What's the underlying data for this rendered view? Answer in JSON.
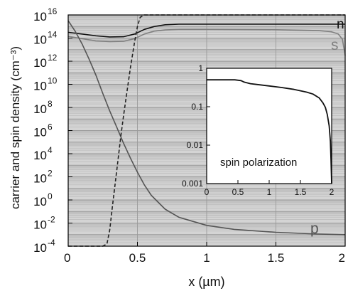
{
  "chart_data": [
    {
      "type": "line",
      "xlabel": "x (µm)",
      "ylabel": "carrier and spin density (cm⁻³)",
      "xlim": [
        0,
        2
      ],
      "ylim_log10": [
        -4,
        16
      ],
      "y_scale": "log",
      "grid": true,
      "plot_background": "#d4d4d4",
      "x_ticks": [
        {
          "v": 0,
          "label": "0"
        },
        {
          "v": 0.5,
          "label": "0.5"
        },
        {
          "v": 1,
          "label": "1"
        },
        {
          "v": 1.5,
          "label": "1.5"
        },
        {
          "v": 2,
          "label": "2"
        }
      ],
      "y_ticks": [
        {
          "exp": 16,
          "base": "10",
          "sup": "16"
        },
        {
          "exp": 14,
          "base": "10",
          "sup": "14"
        },
        {
          "exp": 12,
          "base": "10",
          "sup": "12"
        },
        {
          "exp": 10,
          "base": "10",
          "sup": "10"
        },
        {
          "exp": 8,
          "base": "10",
          "sup": "8"
        },
        {
          "exp": 6,
          "base": "10",
          "sup": "6"
        },
        {
          "exp": 4,
          "base": "10",
          "sup": "4"
        },
        {
          "exp": 2,
          "base": "10",
          "sup": "2"
        },
        {
          "exp": 0,
          "base": "10",
          "sup": "0"
        },
        {
          "exp": -2,
          "base": "10",
          "sup": "-2"
        },
        {
          "exp": -4,
          "base": "10",
          "sup": "-4"
        }
      ],
      "series": [
        {
          "name": "n",
          "color": "#111111",
          "dash": "none",
          "x": [
            0,
            0.1,
            0.2,
            0.3,
            0.4,
            0.48,
            0.55,
            0.62,
            0.7,
            0.8,
            1.0,
            1.5,
            1.8,
            1.95,
            2.0
          ],
          "log10_y": [
            14.5,
            14.35,
            14.2,
            14.1,
            14.12,
            14.35,
            14.75,
            15.0,
            15.15,
            15.2,
            15.2,
            15.2,
            15.2,
            15.2,
            15.2
          ]
        },
        {
          "name": "s",
          "color": "#808080",
          "dash": "none",
          "x": [
            0,
            0.1,
            0.2,
            0.3,
            0.4,
            0.48,
            0.55,
            0.62,
            0.7,
            0.8,
            1.0,
            1.5,
            1.8,
            1.9,
            1.95,
            1.98,
            2.0
          ],
          "log10_y": [
            14.15,
            13.95,
            13.75,
            13.7,
            13.72,
            13.95,
            14.35,
            14.6,
            14.7,
            14.75,
            14.75,
            14.72,
            14.65,
            14.55,
            14.35,
            13.9,
            12.5
          ]
        },
        {
          "name": "p",
          "color": "#555555",
          "dash": "none",
          "x": [
            0,
            0.05,
            0.1,
            0.15,
            0.2,
            0.25,
            0.3,
            0.35,
            0.4,
            0.45,
            0.5,
            0.55,
            0.6,
            0.7,
            0.8,
            1.0,
            1.2,
            1.5,
            1.8,
            2.0
          ],
          "log10_y": [
            15.5,
            14.6,
            13.5,
            12.2,
            10.8,
            9.2,
            7.7,
            6.3,
            4.9,
            3.6,
            2.4,
            1.3,
            0.4,
            -0.8,
            -1.5,
            -2.2,
            -2.55,
            -2.8,
            -2.95,
            -3.0
          ]
        },
        {
          "name": "",
          "color": "#222222",
          "dash": "5,3",
          "x": [
            0,
            0.2,
            0.25,
            0.28,
            0.3,
            0.32,
            0.35,
            0.38,
            0.4,
            0.43,
            0.45,
            0.48,
            0.5,
            0.52,
            0.55,
            0.6,
            1.0,
            1.5,
            2.0
          ],
          "log10_y": [
            -4,
            -4,
            -4,
            -3.8,
            -2.6,
            -0.5,
            2.5,
            5.5,
            7.3,
            9.8,
            11.5,
            13.7,
            15.0,
            15.8,
            16.0,
            16.0,
            16.0,
            16.0,
            16.0
          ]
        }
      ],
      "annotations": [
        {
          "text": "n",
          "series": "n",
          "color": "#111111"
        },
        {
          "text": "s",
          "series": "s",
          "color": "#808080"
        },
        {
          "text": "p",
          "series": "p",
          "color": "#555555"
        }
      ]
    },
    {
      "type": "line",
      "title": "spin polarization",
      "xlim": [
        0,
        2
      ],
      "ylim_log10": [
        -3,
        0
      ],
      "y_scale": "log",
      "plot_background": "#ffffff",
      "x_ticks": [
        {
          "v": 0,
          "label": "0"
        },
        {
          "v": 0.5,
          "label": "0.5"
        },
        {
          "v": 1,
          "label": "1"
        },
        {
          "v": 1.5,
          "label": "1.5"
        },
        {
          "v": 2,
          "label": "2"
        }
      ],
      "y_ticks": [
        {
          "exp": 0,
          "label": "1"
        },
        {
          "exp": -1,
          "label": "0.1"
        },
        {
          "exp": -2,
          "label": "0.01"
        },
        {
          "exp": -3,
          "label": "0.001"
        }
      ],
      "series": [
        {
          "name": "",
          "color": "#111111",
          "dash": "none",
          "x": [
            0,
            0.3,
            0.45,
            0.55,
            0.6,
            0.7,
            0.8,
            1.0,
            1.2,
            1.4,
            1.6,
            1.7,
            1.8,
            1.86,
            1.9,
            1.93,
            1.96,
            1.98,
            1.99,
            2.0
          ],
          "log10_y": [
            -0.3,
            -0.3,
            -0.3,
            -0.32,
            -0.36,
            -0.4,
            -0.42,
            -0.46,
            -0.5,
            -0.55,
            -0.62,
            -0.67,
            -0.77,
            -0.9,
            -1.02,
            -1.2,
            -1.5,
            -1.9,
            -2.4,
            -3.0
          ]
        }
      ]
    }
  ]
}
